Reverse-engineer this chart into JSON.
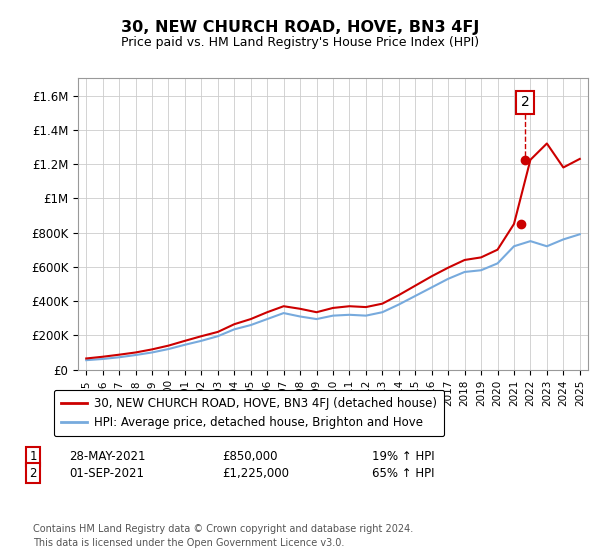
{
  "title": "30, NEW CHURCH ROAD, HOVE, BN3 4FJ",
  "subtitle": "Price paid vs. HM Land Registry's House Price Index (HPI)",
  "legend_line1": "30, NEW CHURCH ROAD, HOVE, BN3 4FJ (detached house)",
  "legend_line2": "HPI: Average price, detached house, Brighton and Hove",
  "annotation1_date": "28-MAY-2021",
  "annotation1_price": "£850,000",
  "annotation1_hpi": "19% ↑ HPI",
  "annotation2_date": "01-SEP-2021",
  "annotation2_price": "£1,225,000",
  "annotation2_hpi": "65% ↑ HPI",
  "footnote": "Contains HM Land Registry data © Crown copyright and database right 2024.\nThis data is licensed under the Open Government Licence v3.0.",
  "price_color": "#cc0000",
  "hpi_color": "#77aadd",
  "annotation_box_color": "#cc0000",
  "ylim": [
    0,
    1700000
  ],
  "yticks": [
    0,
    200000,
    400000,
    600000,
    800000,
    1000000,
    1200000,
    1400000,
    1600000
  ],
  "ytick_labels": [
    "£0",
    "£200K",
    "£400K",
    "£600K",
    "£800K",
    "£1M",
    "£1.2M",
    "£1.4M",
    "£1.6M"
  ],
  "years_x": [
    1995,
    1996,
    1997,
    1998,
    1999,
    2000,
    2001,
    2002,
    2003,
    2004,
    2005,
    2006,
    2007,
    2008,
    2009,
    2010,
    2011,
    2012,
    2013,
    2014,
    2015,
    2016,
    2017,
    2018,
    2019,
    2020,
    2021,
    2022,
    2023,
    2024,
    2025
  ],
  "hpi_values": [
    55000,
    62000,
    72000,
    85000,
    100000,
    120000,
    145000,
    168000,
    195000,
    235000,
    260000,
    295000,
    330000,
    310000,
    295000,
    315000,
    320000,
    315000,
    335000,
    380000,
    430000,
    480000,
    530000,
    570000,
    580000,
    620000,
    720000,
    750000,
    720000,
    760000,
    790000
  ],
  "price_values": [
    65000,
    75000,
    87000,
    100000,
    118000,
    140000,
    168000,
    195000,
    220000,
    265000,
    295000,
    335000,
    370000,
    355000,
    335000,
    360000,
    370000,
    365000,
    385000,
    435000,
    490000,
    545000,
    595000,
    640000,
    655000,
    700000,
    850000,
    1225000,
    1320000,
    1180000,
    1230000
  ],
  "sale1_x": 2021.4,
  "sale1_y": 850000,
  "sale2_x": 2021.67,
  "sale2_y": 1225000,
  "xlim": [
    1994.5,
    2025.5
  ]
}
